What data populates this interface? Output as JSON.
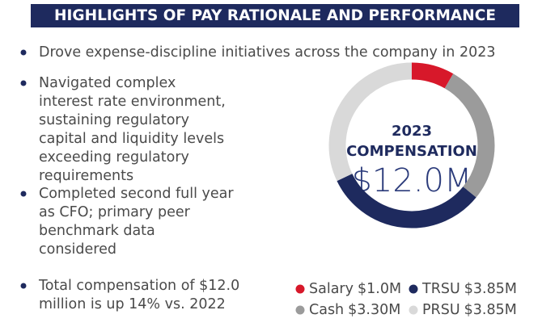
{
  "header": {
    "title": "HIGHLIGHTS OF PAY RATIONALE AND PERFORMANCE"
  },
  "bullets": [
    [
      "Drove expense-discipline initiatives across the company in 2023"
    ],
    [
      "Navigated complex",
      "interest rate environment,",
      "sustaining regulatory",
      "capital and liquidity levels",
      "exceeding regulatory",
      "requirements"
    ],
    [
      "Completed second full year",
      "as CFO; primary peer",
      "benchmark data",
      "considered"
    ],
    [
      "Total compensation of $12.0",
      "million is up 14% vs. 2022"
    ]
  ],
  "chart_data": {
    "type": "donut",
    "center": {
      "year": "2023",
      "label": "COMPENSATION",
      "total": "$12.0M"
    },
    "categories": [
      "Salary",
      "Cash",
      "TRSU",
      "PRSU"
    ],
    "values": [
      1.0,
      3.3,
      3.85,
      3.85
    ],
    "value_labels": [
      "$1.0M",
      "$3.30M",
      "$3.85M",
      "$3.85M"
    ],
    "colors": [
      "#d7182a",
      "#9b9b9b",
      "#1e2a5e",
      "#d9d9d9"
    ]
  }
}
